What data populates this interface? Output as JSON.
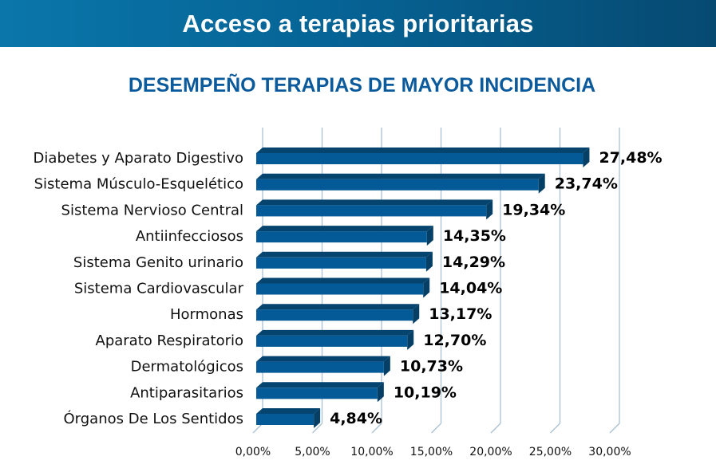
{
  "header": {
    "title": "Acceso a terapias prioritarias"
  },
  "colors": {
    "banner_start": "#0a76aa",
    "banner_end": "#064a72",
    "title": "#0b5a9c",
    "bar_front": "#035a96",
    "bar_top": "#064470",
    "bar_side": "#053f66",
    "grid": "#a9c0d2"
  },
  "chart_data": {
    "type": "bar",
    "orientation": "horizontal",
    "style": "3d",
    "title": "DESEMPEÑO TERAPIAS DE MAYOR INCIDENCIA",
    "xlabel": "",
    "ylabel": "",
    "xlim": [
      0,
      30
    ],
    "x_ticks": [
      0,
      5,
      10,
      15,
      20,
      25,
      30
    ],
    "x_tick_labels": [
      "0,00%",
      "5,00%",
      "10,00%",
      "15,00%",
      "20,00%",
      "25,00%",
      "30,00%"
    ],
    "grid": true,
    "legend": "none",
    "categories": [
      "Diabetes y Aparato Digestivo",
      "Sistema Músculo-Esquelético",
      "Sistema Nervioso Central",
      "Antiinfecciosos",
      "Sistema Genito urinario",
      "Sistema Cardiovascular",
      "Hormonas",
      "Aparato Respiratorio",
      "Dermatológicos",
      "Antiparasitarios",
      "Órganos De Los Sentidos"
    ],
    "values": [
      27.48,
      23.74,
      19.34,
      14.35,
      14.29,
      14.04,
      13.17,
      12.7,
      10.73,
      10.19,
      4.84
    ],
    "value_labels": [
      "27,48%",
      "23,74%",
      "19,34%",
      "14,35%",
      "14,29%",
      "14,04%",
      "13,17%",
      "12,70%",
      "10,73%",
      "10,19%",
      "4,84%"
    ]
  }
}
